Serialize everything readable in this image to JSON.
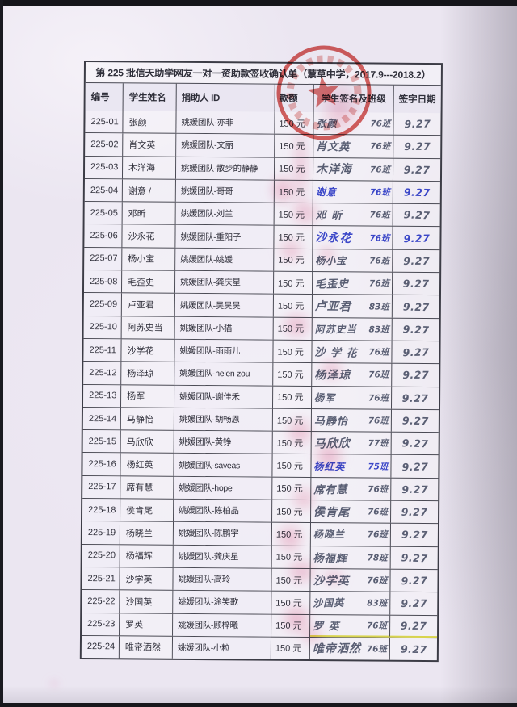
{
  "doc": {
    "title": "第 225 批信天助学网友一对一资助款签收确认单（蔈草中学，2017.9---2018.2）"
  },
  "table": {
    "headers": [
      "编号",
      "学生姓名",
      "捐助人 ID",
      "款额",
      "学生签名及班级",
      "签字日期"
    ],
    "rows": [
      {
        "id": "225-01",
        "name": "张颜",
        "donor": "姚媛团队-亦非",
        "amount": "150 元",
        "sig": "张颜",
        "class": "76班",
        "date": "9.27",
        "ink": "pencil"
      },
      {
        "id": "225-02",
        "name": "肖文英",
        "donor": "姚媛团队-文丽",
        "amount": "150 元",
        "sig": "肖文英",
        "class": "76班",
        "date": "9.27",
        "ink": "pencil"
      },
      {
        "id": "225-03",
        "name": "木洋海",
        "donor": "姚媛团队-散步的静静",
        "amount": "150 元",
        "sig": "木洋海",
        "class": "76班",
        "date": "9.27",
        "ink": "pencil"
      },
      {
        "id": "225-04",
        "name": "谢意 /",
        "donor": "姚媛团队-哥哥",
        "amount": "150 元",
        "sig": "谢意",
        "class": "76班",
        "date": "9.27",
        "ink": "blue",
        "date_ink": "blue"
      },
      {
        "id": "225-05",
        "name": "邓昕",
        "donor": "姚媛团队-刘兰",
        "amount": "150 元",
        "sig": "邓 昕",
        "class": "76班",
        "date": "9.27",
        "ink": "pencil"
      },
      {
        "id": "225-06",
        "name": "沙永花",
        "donor": "姚媛团队-重阳子",
        "amount": "150 元",
        "sig": "沙永花",
        "class": "76班",
        "date": "9.27",
        "ink": "blue",
        "date_ink": "blue"
      },
      {
        "id": "225-07",
        "name": "杨小宝",
        "donor": "姚媛团队-姚媛",
        "amount": "150 元",
        "sig": "杨小宝",
        "class": "76班",
        "date": "9.27",
        "ink": "pencil"
      },
      {
        "id": "225-08",
        "name": "毛歪史",
        "donor": "姚媛团队-龚庆星",
        "amount": "150 元",
        "sig": "毛歪史",
        "class": "76班",
        "date": "9.27",
        "ink": "pencil"
      },
      {
        "id": "225-09",
        "name": "卢亚君",
        "donor": "姚媛团队-吴昊昊",
        "amount": "150 元",
        "sig": "卢亚君",
        "class": "83班",
        "date": "9.27",
        "ink": "pencil"
      },
      {
        "id": "225-10",
        "name": "阿苏史当",
        "donor": "姚媛团队-小猫",
        "amount": "150 元",
        "sig": "阿苏史当",
        "class": "83班",
        "date": "9.27",
        "ink": "pencil"
      },
      {
        "id": "225-11",
        "name": "沙学花",
        "donor": "姚媛团队-雨雨儿",
        "amount": "150 元",
        "sig": "沙 学 花",
        "class": "76班",
        "date": "9.27",
        "ink": "pencil"
      },
      {
        "id": "225-12",
        "name": "杨泽琼",
        "donor": "姚媛团队-helen zou",
        "amount": "150 元",
        "sig": "杨泽琼",
        "class": "76班",
        "date": "9.27",
        "ink": "pencil"
      },
      {
        "id": "225-13",
        "name": "杨军",
        "donor": "姚媛团队-谢佳禾",
        "amount": "150 元",
        "sig": "杨军",
        "class": "76班",
        "date": "9.27",
        "ink": "pencil"
      },
      {
        "id": "225-14",
        "name": "马静怡",
        "donor": "姚媛团队-胡畅恩",
        "amount": "150 元",
        "sig": "马静怡",
        "class": "76班",
        "date": "9.27",
        "ink": "pencil"
      },
      {
        "id": "225-15",
        "name": "马欣欣",
        "donor": "姚媛团队-黄铮",
        "amount": "150 元",
        "sig": "马欣欣",
        "class": "77班",
        "date": "9.27",
        "ink": "pencil"
      },
      {
        "id": "225-16",
        "name": "杨红英",
        "donor": "姚媛团队-saveas",
        "amount": "150 元",
        "sig": "杨红英",
        "class": "75班",
        "date": "9.27",
        "ink": "blue"
      },
      {
        "id": "225-17",
        "name": "席有慧",
        "donor": "姚媛团队-hope",
        "amount": "150 元",
        "sig": "席有慧",
        "class": "76班",
        "date": "9.27",
        "ink": "pencil"
      },
      {
        "id": "225-18",
        "name": "侯肯尾",
        "donor": "姚媛团队-陈柏晶",
        "amount": "150 元",
        "sig": "侯肯尾",
        "class": "76班",
        "date": "9.27",
        "ink": "pencil"
      },
      {
        "id": "225-19",
        "name": "杨晓兰",
        "donor": "姚媛团队-陈鹏宇",
        "amount": "150 元",
        "sig": "杨晓兰",
        "class": "76班",
        "date": "9.27",
        "ink": "pencil"
      },
      {
        "id": "225-20",
        "name": "杨福辉",
        "donor": "姚媛团队-龚庆星",
        "amount": "150 元",
        "sig": "杨福辉",
        "class": "78班",
        "date": "9.27",
        "ink": "pencil"
      },
      {
        "id": "225-21",
        "name": "沙学英",
        "donor": "姚媛团队-高玲",
        "amount": "150 元",
        "sig": "沙学英",
        "class": "76班",
        "date": "9.27",
        "ink": "pencil"
      },
      {
        "id": "225-22",
        "name": "沙国英",
        "donor": "姚媛团队-涂笑歌",
        "amount": "150 元",
        "sig": "沙国英",
        "class": "83班",
        "date": "9.27",
        "ink": "pencil"
      },
      {
        "id": "225-23",
        "name": "罗英",
        "donor": "姚媛团队-顾梓曦",
        "amount": "150 元",
        "sig": "罗 英",
        "class": "76班",
        "date": "9.27",
        "ink": "pencil",
        "underline": true
      },
      {
        "id": "225-24",
        "name": "唯帝洒然",
        "donor": "姚媛团队-小粒",
        "amount": "150 元",
        "sig": "唯帝洒然",
        "class": "76班",
        "date": "9.27",
        "ink": "pencil"
      }
    ]
  },
  "stamp": {
    "name": "official-red-round-seal",
    "color": "#d03c38"
  },
  "colors": {
    "paper": "#ebe6f1",
    "table_line": "#4a4a54",
    "printed_text": "#2f2f3a",
    "pencil_ink": "#4c5268",
    "blue_ink": "#2c39c4",
    "smudge_pink": "#e96e96"
  }
}
